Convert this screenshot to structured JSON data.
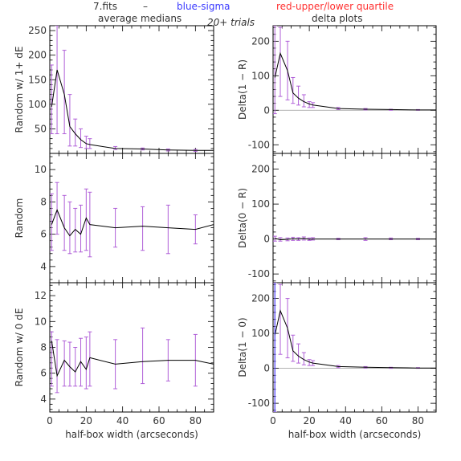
{
  "header": {
    "file": "7.fits",
    "dash": "–",
    "blue_label": "blue-sigma",
    "red_label": "red-upper/lower quartile",
    "trials": "20+ trials",
    "left_title": "average medians",
    "right_title": "delta plots"
  },
  "colors": {
    "blue": "#3a3aff",
    "red": "#ff3030",
    "line": "#000000",
    "error": "#b060d8",
    "zero": "#999999"
  },
  "chart_data": [
    {
      "type": "line",
      "ylabel": "Random w/ 1+ dE",
      "xlabel": "",
      "xlim": [
        0,
        90
      ],
      "ylim": [
        0,
        260
      ],
      "xticks": [],
      "yticks": [
        50,
        100,
        150,
        200,
        250
      ],
      "x": [
        1,
        4,
        8,
        11,
        14,
        17,
        20,
        22,
        36,
        51,
        65,
        80,
        90
      ],
      "y": [
        95,
        170,
        120,
        55,
        40,
        28,
        20,
        18,
        10,
        9,
        7,
        6,
        6
      ],
      "err_x": [
        1,
        4,
        8,
        11,
        14,
        17,
        20,
        22,
        36,
        51,
        65,
        80
      ],
      "err_lo": [
        40,
        40,
        40,
        15,
        15,
        12,
        10,
        10,
        8,
        7,
        5,
        4
      ],
      "err_hi": [
        180,
        260,
        210,
        120,
        70,
        50,
        35,
        30,
        14,
        11,
        9,
        8
      ]
    },
    {
      "type": "line",
      "ylabel": "Delta(1 − R)",
      "xlabel": "",
      "xlim": [
        0,
        90
      ],
      "ylim": [
        -125,
        245
      ],
      "xticks": [],
      "yticks": [
        -100,
        0,
        100,
        200
      ],
      "x": [
        1,
        4,
        8,
        11,
        14,
        17,
        20,
        22,
        36,
        51,
        65,
        80,
        90
      ],
      "y": [
        95,
        165,
        115,
        50,
        35,
        25,
        18,
        15,
        5,
        3,
        2,
        1,
        1
      ],
      "err_x": [
        1,
        4,
        8,
        11,
        14,
        17,
        20,
        22,
        36,
        51,
        65,
        80
      ],
      "err_lo": [
        -10,
        40,
        30,
        20,
        15,
        10,
        8,
        8,
        2,
        1,
        0,
        0
      ],
      "err_hi": [
        245,
        240,
        200,
        95,
        70,
        45,
        25,
        22,
        8,
        5,
        3,
        2
      ]
    },
    {
      "type": "line",
      "ylabel": "Random",
      "xlabel": "",
      "xlim": [
        0,
        90
      ],
      "ylim": [
        3,
        11
      ],
      "xticks": [],
      "yticks": [
        4,
        6,
        8,
        10
      ],
      "x": [
        1,
        4,
        8,
        11,
        14,
        17,
        20,
        22,
        36,
        51,
        65,
        80,
        90
      ],
      "y": [
        6.6,
        7.5,
        6.4,
        5.9,
        6.3,
        6.0,
        7.0,
        6.6,
        6.4,
        6.5,
        6.4,
        6.3,
        6.6
      ],
      "err_x": [
        1,
        4,
        8,
        11,
        14,
        17,
        20,
        22,
        36,
        51,
        65,
        80
      ],
      "err_lo": [
        5.0,
        6.0,
        5.0,
        4.8,
        4.9,
        4.9,
        5.0,
        4.6,
        5.2,
        5.0,
        4.8,
        5.4
      ],
      "err_hi": [
        8.5,
        9.2,
        8.4,
        8.0,
        7.6,
        7.8,
        8.8,
        8.6,
        7.6,
        7.7,
        7.8,
        7.2
      ]
    },
    {
      "type": "line",
      "ylabel": "Delta(0 − R)",
      "xlabel": "",
      "xlim": [
        0,
        90
      ],
      "ylim": [
        -125,
        245
      ],
      "xticks": [],
      "yticks": [
        -100,
        0,
        100,
        200
      ],
      "x": [
        1,
        4,
        8,
        11,
        14,
        17,
        20,
        22,
        36,
        51,
        65,
        80,
        90
      ],
      "y": [
        2,
        -2,
        -1,
        1,
        0,
        2,
        -1,
        0,
        0,
        0,
        0,
        0,
        0
      ],
      "err_x": [
        1,
        4,
        8,
        11,
        14,
        17,
        20,
        22,
        36,
        51,
        65,
        80
      ],
      "err_lo": [
        -6,
        -6,
        -5,
        -4,
        -4,
        -3,
        -4,
        -3,
        -2,
        -4,
        -2,
        -2
      ],
      "err_hi": [
        8,
        4,
        3,
        5,
        4,
        6,
        3,
        4,
        2,
        4,
        3,
        2
      ]
    },
    {
      "type": "line",
      "ylabel": "Random w/ 0 dE",
      "xlabel": "half-box width (arcseconds)",
      "xlim": [
        0,
        90
      ],
      "ylim": [
        3,
        13
      ],
      "xticks": [
        0,
        20,
        40,
        60,
        80
      ],
      "yticks": [
        4,
        6,
        8,
        10,
        12
      ],
      "x": [
        1,
        4,
        8,
        11,
        14,
        17,
        20,
        22,
        36,
        51,
        65,
        80,
        90
      ],
      "y": [
        8.5,
        5.8,
        7.0,
        6.5,
        6.1,
        6.9,
        6.3,
        7.2,
        6.7,
        6.9,
        7.0,
        7.0,
        6.7
      ],
      "err_x": [
        1,
        4,
        8,
        11,
        14,
        17,
        20,
        22,
        36,
        51,
        65,
        80
      ],
      "err_lo": [
        5.0,
        4.5,
        5.0,
        5.0,
        5.0,
        5.0,
        4.8,
        5.0,
        4.8,
        5.2,
        5.4,
        5.0
      ],
      "err_hi": [
        9.2,
        8.6,
        8.5,
        8.4,
        8.0,
        8.7,
        8.8,
        9.2,
        8.6,
        9.5,
        8.6,
        9.0
      ]
    },
    {
      "type": "line",
      "ylabel": "Delta(1 − 0)",
      "xlabel": "half-box width (arcseconds)",
      "xlim": [
        0,
        90
      ],
      "ylim": [
        -125,
        245
      ],
      "xticks": [
        0,
        20,
        40,
        60,
        80
      ],
      "yticks": [
        -100,
        0,
        100,
        200
      ],
      "x": [
        1,
        4,
        8,
        11,
        14,
        17,
        20,
        22,
        36,
        51,
        65,
        80,
        90
      ],
      "y": [
        95,
        165,
        115,
        50,
        35,
        25,
        18,
        15,
        5,
        3,
        2,
        1,
        1
      ],
      "err_x": [
        1,
        4,
        8,
        11,
        14,
        17,
        20,
        22,
        36,
        51,
        65,
        80
      ],
      "err_lo": [
        -125,
        40,
        30,
        20,
        15,
        10,
        8,
        8,
        2,
        1,
        0,
        0
      ],
      "err_hi": [
        245,
        240,
        200,
        95,
        70,
        45,
        25,
        22,
        8,
        5,
        3,
        2
      ]
    }
  ]
}
